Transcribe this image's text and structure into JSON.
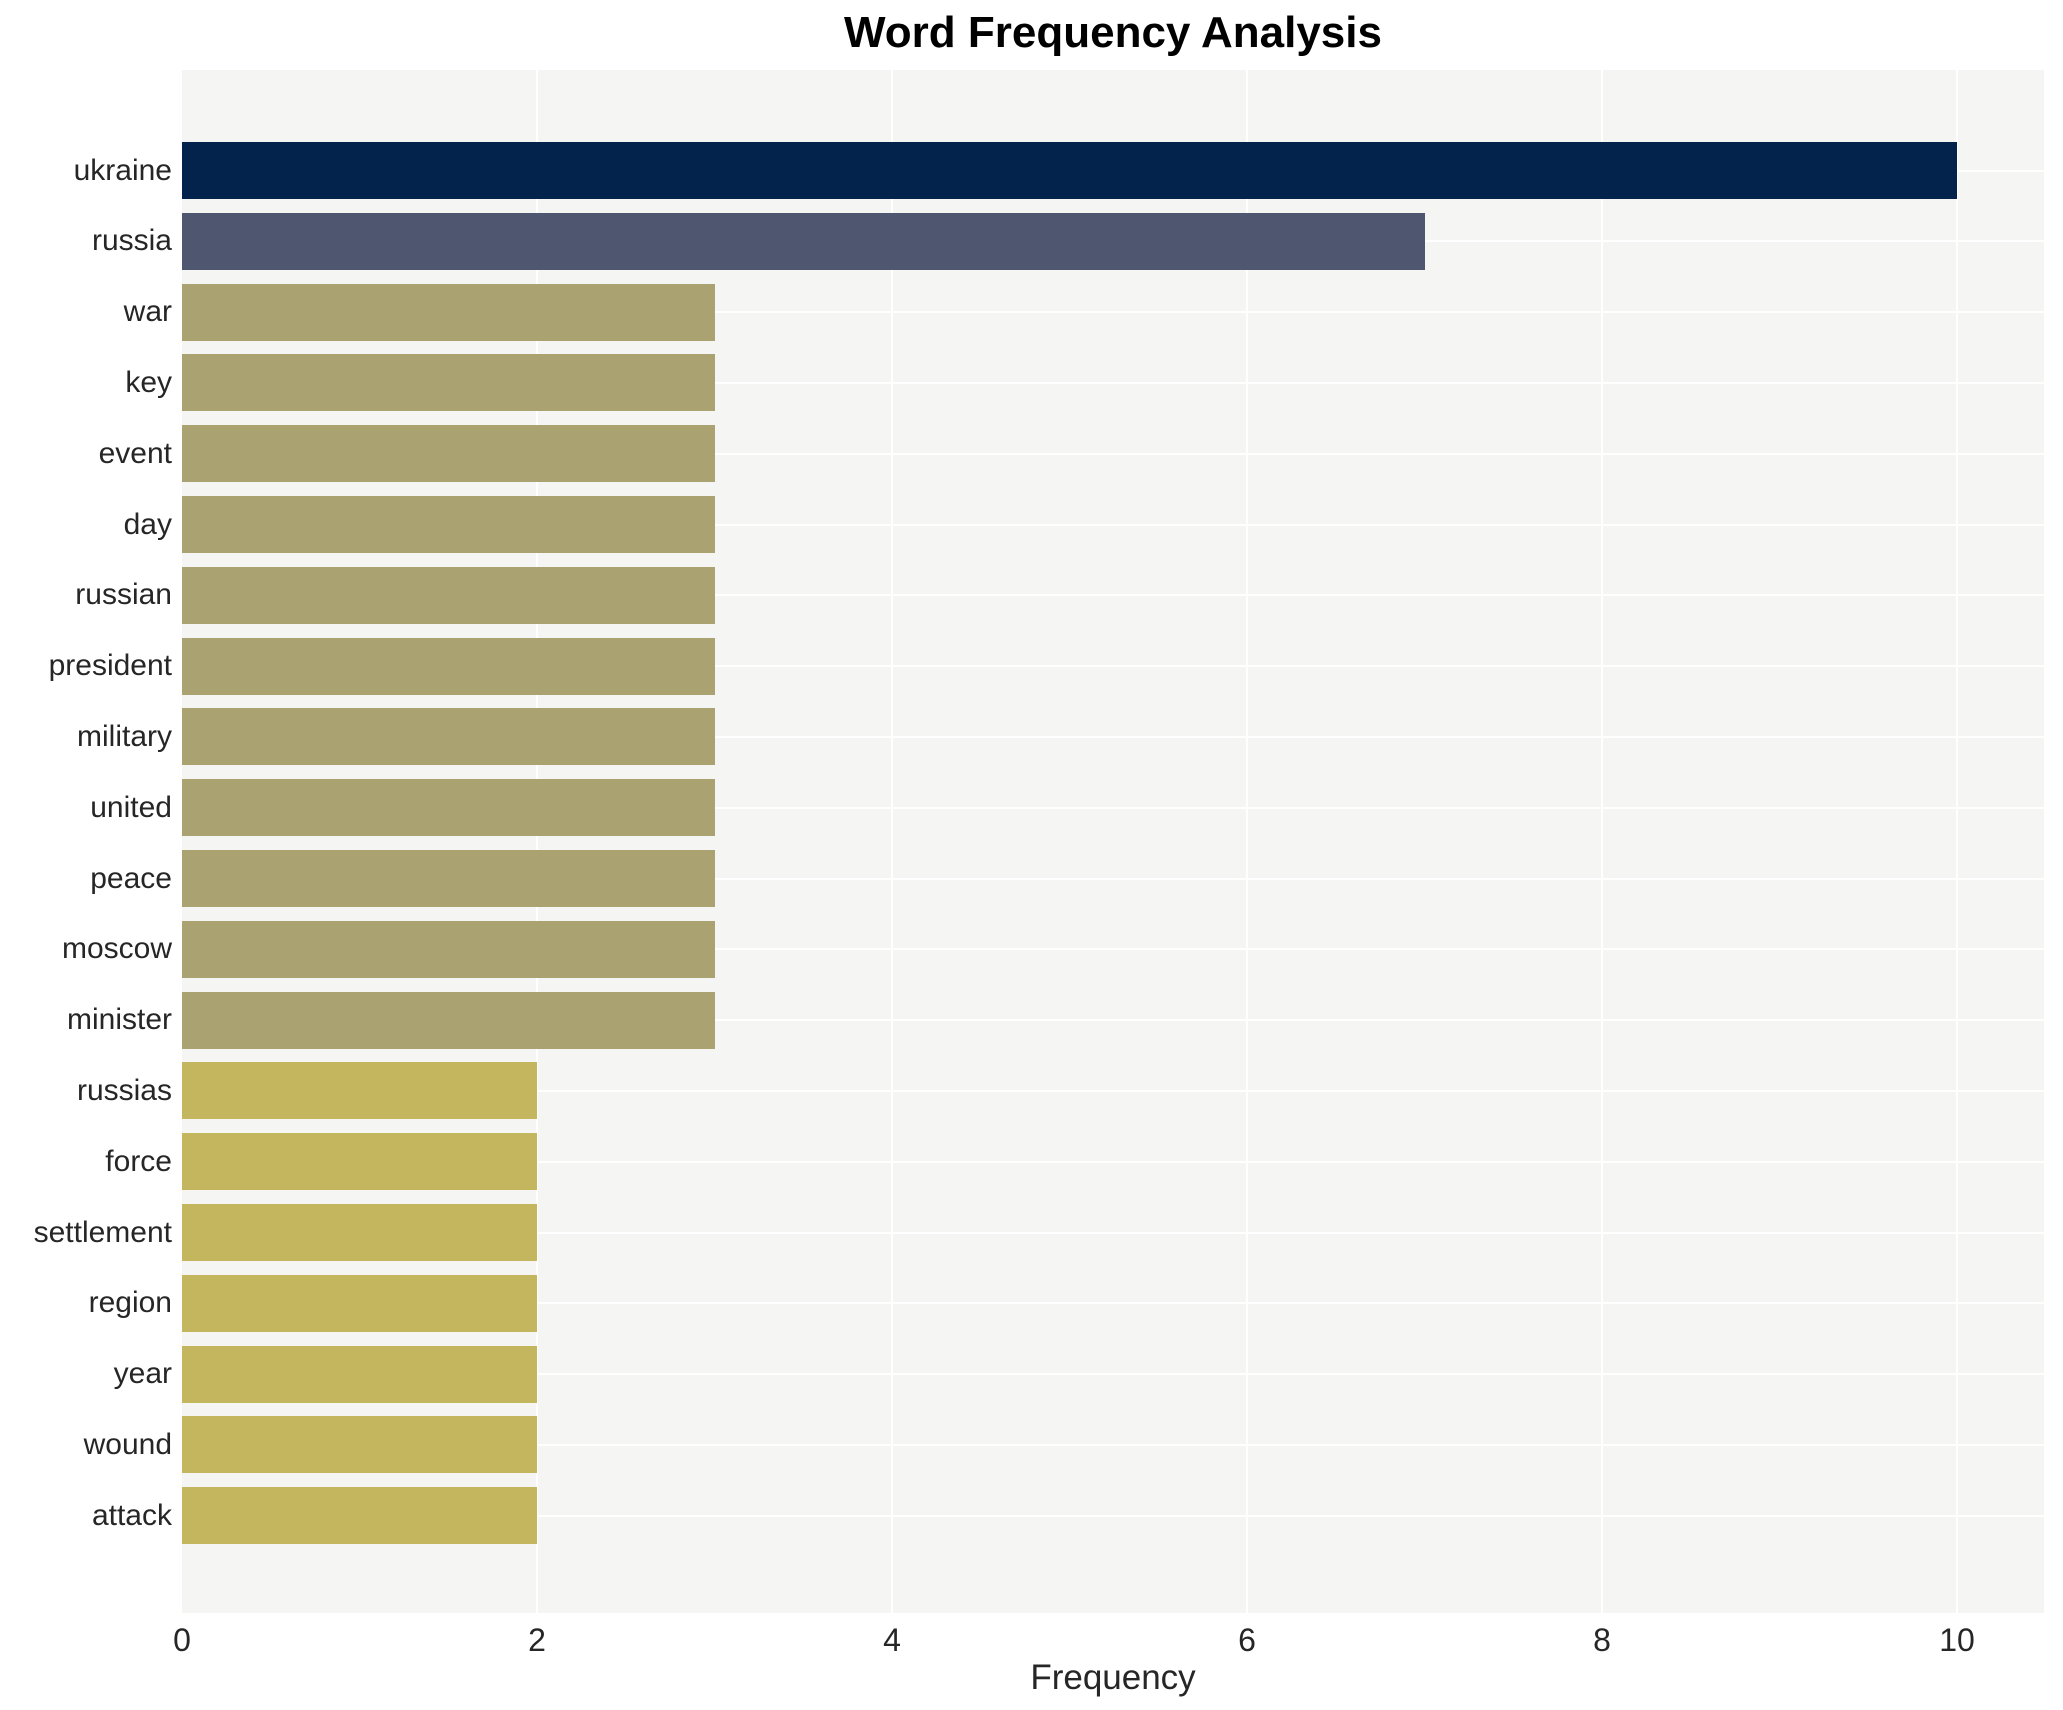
{
  "title": "Word Frequency Analysis",
  "xlabel": "Frequency",
  "chart_data": {
    "type": "bar",
    "orientation": "horizontal",
    "title": "Word Frequency Analysis",
    "xlabel": "Frequency",
    "ylabel": "",
    "categories": [
      "ukraine",
      "russia",
      "war",
      "key",
      "event",
      "day",
      "russian",
      "president",
      "military",
      "united",
      "peace",
      "moscow",
      "minister",
      "russias",
      "force",
      "settlement",
      "region",
      "year",
      "wound",
      "attack"
    ],
    "values": [
      10,
      7,
      3,
      3,
      3,
      3,
      3,
      3,
      3,
      3,
      3,
      3,
      3,
      2,
      2,
      2,
      2,
      2,
      2,
      2
    ],
    "bar_colors": [
      "#03224c",
      "#4e576f",
      "#aba271",
      "#aba271",
      "#aba271",
      "#aba271",
      "#aba271",
      "#aba271",
      "#aba271",
      "#aba271",
      "#aba271",
      "#aba271",
      "#aba271",
      "#c4b65e",
      "#c4b65e",
      "#c4b65e",
      "#c4b65e",
      "#c4b65e",
      "#c4b65e",
      "#c4b65e"
    ],
    "xticks": [
      0,
      2,
      4,
      6,
      8,
      10
    ],
    "xlim": [
      0,
      10.49
    ],
    "grid": "white gridlines, vertical at x ticks and horizontal at category centers",
    "legend": "none",
    "plot_background": "#f5f5f3",
    "figure_background": "#ffffff",
    "text_color": "#262626"
  }
}
